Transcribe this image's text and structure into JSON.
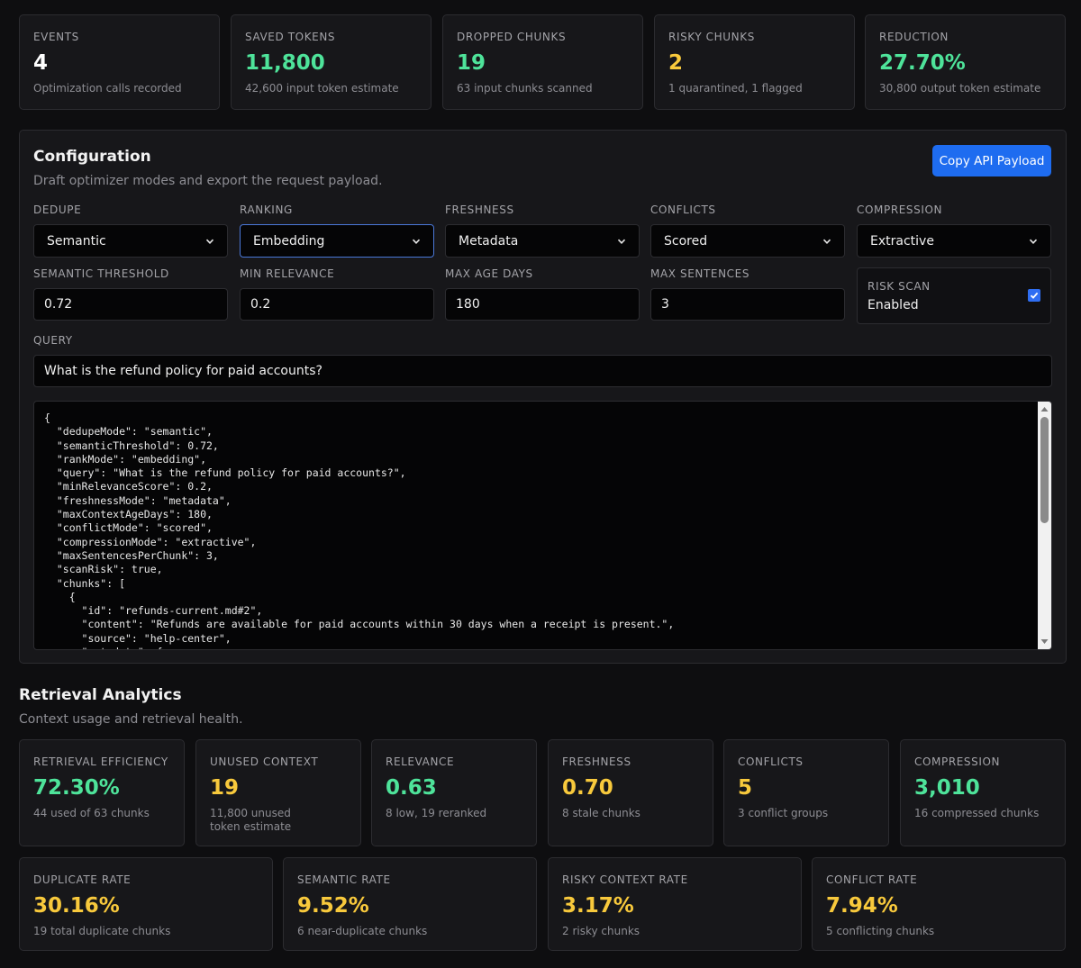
{
  "summary": [
    {
      "label": "EVENTS",
      "value": "4",
      "sub": "Optimization calls recorded",
      "color": "white"
    },
    {
      "label": "SAVED TOKENS",
      "value": "11,800",
      "sub": "42,600 input token estimate",
      "color": "green"
    },
    {
      "label": "DROPPED CHUNKS",
      "value": "19",
      "sub": "63 input chunks scanned",
      "color": "green"
    },
    {
      "label": "RISKY CHUNKS",
      "value": "2",
      "sub": "1 quarantined, 1 flagged",
      "color": "yellow"
    },
    {
      "label": "REDUCTION",
      "value": "27.70%",
      "sub": "30,800 output token estimate",
      "color": "green"
    }
  ],
  "config": {
    "title": "Configuration",
    "subtitle": "Draft optimizer modes and export the request payload.",
    "copy_label": "Copy API Payload",
    "selects": [
      {
        "label": "DEDUPE",
        "value": "Semantic"
      },
      {
        "label": "RANKING",
        "value": "Embedding"
      },
      {
        "label": "FRESHNESS",
        "value": "Metadata"
      },
      {
        "label": "CONFLICTS",
        "value": "Scored"
      },
      {
        "label": "COMPRESSION",
        "value": "Extractive"
      }
    ],
    "inputs": [
      {
        "label": "SEMANTIC THRESHOLD",
        "value": "0.72"
      },
      {
        "label": "MIN RELEVANCE",
        "value": "0.2"
      },
      {
        "label": "MAX AGE DAYS",
        "value": "180"
      },
      {
        "label": "MAX SENTENCES",
        "value": "3"
      }
    ],
    "risk_scan": {
      "label": "RISK SCAN",
      "value": "Enabled",
      "checked": true
    },
    "query_label": "QUERY",
    "query_value": "What is the refund policy for paid accounts?",
    "payload": "{\n  \"dedupeMode\": \"semantic\",\n  \"semanticThreshold\": 0.72,\n  \"rankMode\": \"embedding\",\n  \"query\": \"What is the refund policy for paid accounts?\",\n  \"minRelevanceScore\": 0.2,\n  \"freshnessMode\": \"metadata\",\n  \"maxContextAgeDays\": 180,\n  \"conflictMode\": \"scored\",\n  \"compressionMode\": \"extractive\",\n  \"maxSentencesPerChunk\": 3,\n  \"scanRisk\": true,\n  \"chunks\": [\n    {\n      \"id\": \"refunds-current.md#2\",\n      \"content\": \"Refunds are available for paid accounts within 30 days when a receipt is present.\",\n      \"source\": \"help-center\",\n      \"metadata\": {"
  },
  "analytics": {
    "title": "Retrieval Analytics",
    "subtitle": "Context usage and retrieval health.",
    "row1": [
      {
        "label": "RETRIEVAL EFFICIENCY",
        "value": "72.30%",
        "sub": "44 used of 63 chunks",
        "color": "green"
      },
      {
        "label": "UNUSED CONTEXT",
        "value": "19",
        "sub": "11,800 unused token estimate",
        "color": "yellow"
      },
      {
        "label": "RELEVANCE",
        "value": "0.63",
        "sub": "8 low, 19 reranked",
        "color": "green"
      },
      {
        "label": "FRESHNESS",
        "value": "0.70",
        "sub": "8 stale chunks",
        "color": "yellow"
      },
      {
        "label": "CONFLICTS",
        "value": "5",
        "sub": "3 conflict groups",
        "color": "yellow"
      },
      {
        "label": "COMPRESSION",
        "value": "3,010",
        "sub": "16 compressed chunks",
        "color": "green"
      }
    ],
    "row2": [
      {
        "label": "DUPLICATE RATE",
        "value": "30.16%",
        "sub": "19 total duplicate chunks",
        "color": "yellow"
      },
      {
        "label": "SEMANTIC RATE",
        "value": "9.52%",
        "sub": "6 near-duplicate chunks",
        "color": "yellow"
      },
      {
        "label": "RISKY CONTEXT RATE",
        "value": "3.17%",
        "sub": "2 risky chunks",
        "color": "yellow"
      },
      {
        "label": "CONFLICT RATE",
        "value": "7.94%",
        "sub": "5 conflicting chunks",
        "color": "yellow"
      }
    ]
  }
}
